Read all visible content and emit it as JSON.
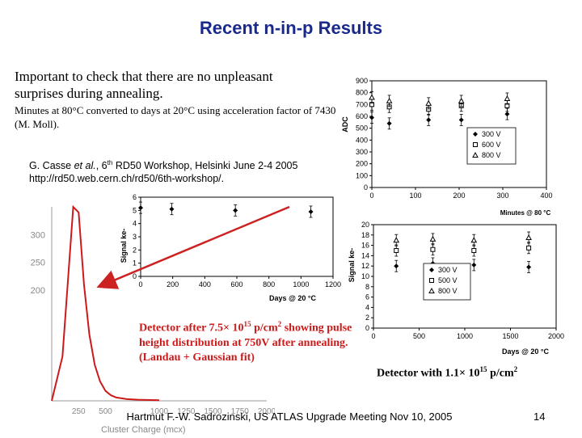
{
  "title": "Recent n-in-p Results",
  "intro_text": "Important to check that there are no unpleasant surprises during annealing.",
  "minutes_note": "Minutes at 80°C converted to days at 20°C using acceleration factor of 7430 (M. Moll).",
  "citation": {
    "authors": "G. Casse",
    "et_al": "et al.",
    "event_prefix": ", 6",
    "event_sup": "th",
    "event_rest": " RD50 Workshop, Helsinki June 2-4 2005",
    "url": "http://rd50.web.cern.ch/rd50/6th-workshop/."
  },
  "caption_left": {
    "part1": "Detector after 7.5× 10",
    "exp": "15",
    "part2": " p/cm",
    "exp2": "2",
    "part3": " showing pulse height distribution at 750V after annealing. (Landau + Gaussian fit)"
  },
  "caption_right": {
    "part1": "Detector with 1.1× 10",
    "exp": "15",
    "part2": " p/cm",
    "exp2": "2"
  },
  "footer": "Hartmut F.-W. Sadrozinski, US ATLAS Upgrade Meeting Nov 10,  2005",
  "page_number": "14",
  "colors": {
    "title": "#1a2a8c",
    "caption_left": "#cc1a1a",
    "arrow": "#cc2222",
    "histogram": "#cc1a1a"
  },
  "chart_data": [
    {
      "id": "adc-minutes",
      "type": "scatter",
      "xlabel": "Minutes @ 80 °C",
      "ylabel": "ADC",
      "xlim": [
        0,
        400
      ],
      "ylim": [
        0,
        900
      ],
      "xticks": [
        "0",
        "100",
        "200",
        "300",
        "400"
      ],
      "yticks": [
        "0",
        "100",
        "200",
        "300",
        "400",
        "500",
        "600",
        "700",
        "800",
        "900"
      ],
      "legend": [
        "300 V",
        "600 V",
        "800 V"
      ],
      "legend_position": "right",
      "series": [
        {
          "name": "300 V",
          "x": [
            0,
            40,
            130,
            205,
            310
          ],
          "y": [
            590,
            540,
            570,
            570,
            620
          ]
        },
        {
          "name": "600 V",
          "x": [
            0,
            40,
            130,
            205,
            310
          ],
          "y": [
            700,
            680,
            660,
            690,
            690
          ]
        },
        {
          "name": "800 V",
          "x": [
            0,
            40,
            130,
            205,
            310
          ],
          "y": [
            760,
            730,
            710,
            730,
            750
          ]
        }
      ]
    },
    {
      "id": "signal-days-left",
      "type": "scatter",
      "xlabel": "Days @ 20 °C",
      "ylabel": "Signal ke-",
      "xlim": [
        0,
        1300
      ],
      "ylim": [
        0,
        6
      ],
      "xticks": [
        "0",
        "200",
        "400",
        "600",
        "800",
        "1000",
        "1200"
      ],
      "yticks": [
        "0",
        "1",
        "2",
        "3",
        "4",
        "5",
        "6"
      ],
      "series": [
        {
          "x": [
            0,
            210,
            640,
            1150
          ],
          "y": [
            5.2,
            5.1,
            5.0,
            4.9
          ]
        }
      ]
    },
    {
      "id": "signal-days-right",
      "type": "scatter",
      "xlabel": "Days @ 20 °C",
      "ylabel": "Signal ke-",
      "xlim": [
        0,
        2000
      ],
      "ylim": [
        0,
        20
      ],
      "xticks": [
        "0",
        "500",
        "1000",
        "1500",
        "2000"
      ],
      "yticks": [
        "0",
        "2",
        "4",
        "6",
        "8",
        "10",
        "12",
        "14",
        "16",
        "18",
        "20"
      ],
      "legend": [
        "300 V",
        "500 V",
        "800 V"
      ],
      "legend_position": "center",
      "series": [
        {
          "name": "300 V",
          "x": [
            250,
            650,
            1100,
            1700
          ],
          "y": [
            12.0,
            12.5,
            12.2,
            11.8
          ]
        },
        {
          "name": "500 V",
          "x": [
            250,
            650,
            1100,
            1700
          ],
          "y": [
            15.0,
            15.2,
            15.0,
            15.5
          ]
        },
        {
          "name": "800 V",
          "x": [
            250,
            650,
            1100,
            1700
          ],
          "y": [
            17.0,
            17.2,
            17.0,
            17.5
          ]
        }
      ]
    },
    {
      "id": "cluster-charge-histogram",
      "type": "area",
      "xlabel": "Cluster Charge (mcx)",
      "ylabel": "",
      "xlim": [
        0,
        2000
      ],
      "ylim": [
        0,
        350
      ],
      "xticks": [
        "250",
        "500",
        "1000",
        "1250",
        "1500",
        "1750",
        "2000"
      ],
      "yticks": [
        "200",
        "250",
        "300"
      ],
      "x": [
        0,
        100,
        200,
        250,
        300,
        350,
        400,
        450,
        500,
        550,
        600,
        700,
        800,
        1000
      ],
      "y": [
        0,
        80,
        390,
        340,
        210,
        120,
        65,
        35,
        18,
        10,
        6,
        3,
        2,
        1
      ]
    }
  ]
}
